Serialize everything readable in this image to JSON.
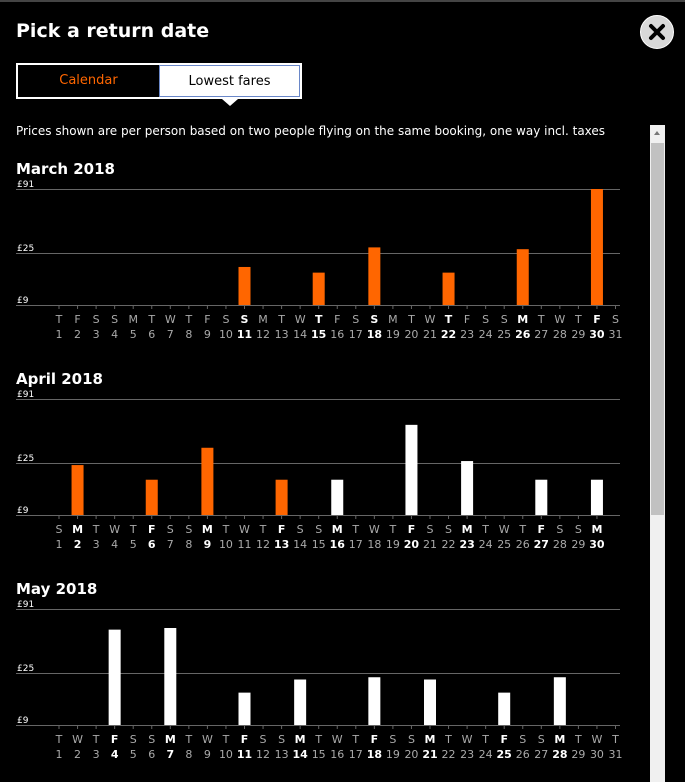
{
  "dialog": {
    "title": "Pick a return date",
    "close_icon": "close-icon"
  },
  "tabs": [
    {
      "label": "Calendar",
      "active": false
    },
    {
      "label": "Lowest fares",
      "active": true
    }
  ],
  "note": "Prices shown are per person based on two people flying on the same booking, one way incl. taxes",
  "colors": {
    "highlight": "#ff6600",
    "bar_default": "#ffffff",
    "background": "#000000"
  },
  "months": [
    {
      "label": "March 2018",
      "chart_data": {
        "type": "bar",
        "y_ticks": [
          "£91",
          "£25",
          "£9"
        ],
        "scale": "log",
        "days": [
          {
            "w": "T",
            "d": "1"
          },
          {
            "w": "F",
            "d": "2"
          },
          {
            "w": "S",
            "d": "3"
          },
          {
            "w": "S",
            "d": "4"
          },
          {
            "w": "M",
            "d": "5"
          },
          {
            "w": "T",
            "d": "6"
          },
          {
            "w": "W",
            "d": "7"
          },
          {
            "w": "T",
            "d": "8"
          },
          {
            "w": "F",
            "d": "9"
          },
          {
            "w": "S",
            "d": "10"
          },
          {
            "w": "S",
            "d": "11",
            "bold": true,
            "value": 19,
            "color": "orange"
          },
          {
            "w": "M",
            "d": "12"
          },
          {
            "w": "T",
            "d": "13"
          },
          {
            "w": "W",
            "d": "14"
          },
          {
            "w": "T",
            "d": "15",
            "bold": true,
            "value": 17,
            "color": "orange"
          },
          {
            "w": "F",
            "d": "16"
          },
          {
            "w": "S",
            "d": "17"
          },
          {
            "w": "S",
            "d": "18",
            "bold": true,
            "value": 28,
            "color": "orange"
          },
          {
            "w": "M",
            "d": "19"
          },
          {
            "w": "T",
            "d": "20"
          },
          {
            "w": "W",
            "d": "21"
          },
          {
            "w": "T",
            "d": "22",
            "bold": true,
            "value": 17,
            "color": "orange"
          },
          {
            "w": "F",
            "d": "23"
          },
          {
            "w": "S",
            "d": "24"
          },
          {
            "w": "S",
            "d": "25"
          },
          {
            "w": "M",
            "d": "26",
            "bold": true,
            "value": 27,
            "color": "orange"
          },
          {
            "w": "T",
            "d": "27"
          },
          {
            "w": "W",
            "d": "28"
          },
          {
            "w": "T",
            "d": "29"
          },
          {
            "w": "F",
            "d": "30",
            "bold": true,
            "value": 91,
            "color": "orange"
          },
          {
            "w": "S",
            "d": "31"
          }
        ]
      }
    },
    {
      "label": "April 2018",
      "chart_data": {
        "type": "bar",
        "y_ticks": [
          "£91",
          "£25",
          "£9"
        ],
        "scale": "log",
        "days": [
          {
            "w": "S",
            "d": "1"
          },
          {
            "w": "M",
            "d": "2",
            "bold": true,
            "value": 24,
            "color": "orange"
          },
          {
            "w": "T",
            "d": "3"
          },
          {
            "w": "W",
            "d": "4"
          },
          {
            "w": "T",
            "d": "5"
          },
          {
            "w": "F",
            "d": "6",
            "bold": true,
            "value": 18,
            "color": "orange"
          },
          {
            "w": "S",
            "d": "7"
          },
          {
            "w": "S",
            "d": "8"
          },
          {
            "w": "M",
            "d": "9",
            "bold": true,
            "value": 34,
            "color": "orange"
          },
          {
            "w": "T",
            "d": "10"
          },
          {
            "w": "W",
            "d": "11"
          },
          {
            "w": "T",
            "d": "12"
          },
          {
            "w": "F",
            "d": "13",
            "bold": true,
            "value": 18,
            "color": "orange"
          },
          {
            "w": "S",
            "d": "14"
          },
          {
            "w": "S",
            "d": "15"
          },
          {
            "w": "M",
            "d": "16",
            "bold": true,
            "value": 18,
            "color": "white"
          },
          {
            "w": "T",
            "d": "17"
          },
          {
            "w": "W",
            "d": "18"
          },
          {
            "w": "T",
            "d": "19"
          },
          {
            "w": "F",
            "d": "20",
            "bold": true,
            "value": 54,
            "color": "white"
          },
          {
            "w": "S",
            "d": "21"
          },
          {
            "w": "S",
            "d": "22"
          },
          {
            "w": "M",
            "d": "23",
            "bold": true,
            "value": 26,
            "color": "white"
          },
          {
            "w": "T",
            "d": "24"
          },
          {
            "w": "W",
            "d": "25"
          },
          {
            "w": "T",
            "d": "26"
          },
          {
            "w": "F",
            "d": "27",
            "bold": true,
            "value": 18,
            "color": "white"
          },
          {
            "w": "S",
            "d": "28"
          },
          {
            "w": "S",
            "d": "29"
          },
          {
            "w": "M",
            "d": "30",
            "bold": true,
            "value": 18,
            "color": "white"
          }
        ]
      }
    },
    {
      "label": "May 2018",
      "chart_data": {
        "type": "bar",
        "y_ticks": [
          "£91",
          "£25",
          "£9"
        ],
        "scale": "log",
        "days": [
          {
            "w": "T",
            "d": "1"
          },
          {
            "w": "W",
            "d": "2"
          },
          {
            "w": "T",
            "d": "3"
          },
          {
            "w": "F",
            "d": "4",
            "bold": true,
            "value": 60,
            "color": "white"
          },
          {
            "w": "S",
            "d": "5"
          },
          {
            "w": "S",
            "d": "6"
          },
          {
            "w": "M",
            "d": "7",
            "bold": true,
            "value": 62,
            "color": "white"
          },
          {
            "w": "T",
            "d": "8"
          },
          {
            "w": "W",
            "d": "9"
          },
          {
            "w": "T",
            "d": "10"
          },
          {
            "w": "F",
            "d": "11",
            "bold": true,
            "value": 17,
            "color": "white"
          },
          {
            "w": "S",
            "d": "12"
          },
          {
            "w": "S",
            "d": "13"
          },
          {
            "w": "M",
            "d": "14",
            "bold": true,
            "value": 22,
            "color": "white"
          },
          {
            "w": "T",
            "d": "15"
          },
          {
            "w": "W",
            "d": "16"
          },
          {
            "w": "T",
            "d": "17"
          },
          {
            "w": "F",
            "d": "18",
            "bold": true,
            "value": 23,
            "color": "white"
          },
          {
            "w": "S",
            "d": "19"
          },
          {
            "w": "S",
            "d": "20"
          },
          {
            "w": "M",
            "d": "21",
            "bold": true,
            "value": 22,
            "color": "white"
          },
          {
            "w": "T",
            "d": "22"
          },
          {
            "w": "W",
            "d": "23"
          },
          {
            "w": "T",
            "d": "24"
          },
          {
            "w": "F",
            "d": "25",
            "bold": true,
            "value": 17,
            "color": "white"
          },
          {
            "w": "S",
            "d": "26"
          },
          {
            "w": "S",
            "d": "27"
          },
          {
            "w": "M",
            "d": "28",
            "bold": true,
            "value": 23,
            "color": "white"
          },
          {
            "w": "T",
            "d": "29"
          },
          {
            "w": "W",
            "d": "30"
          },
          {
            "w": "T",
            "d": "31"
          }
        ]
      }
    }
  ]
}
